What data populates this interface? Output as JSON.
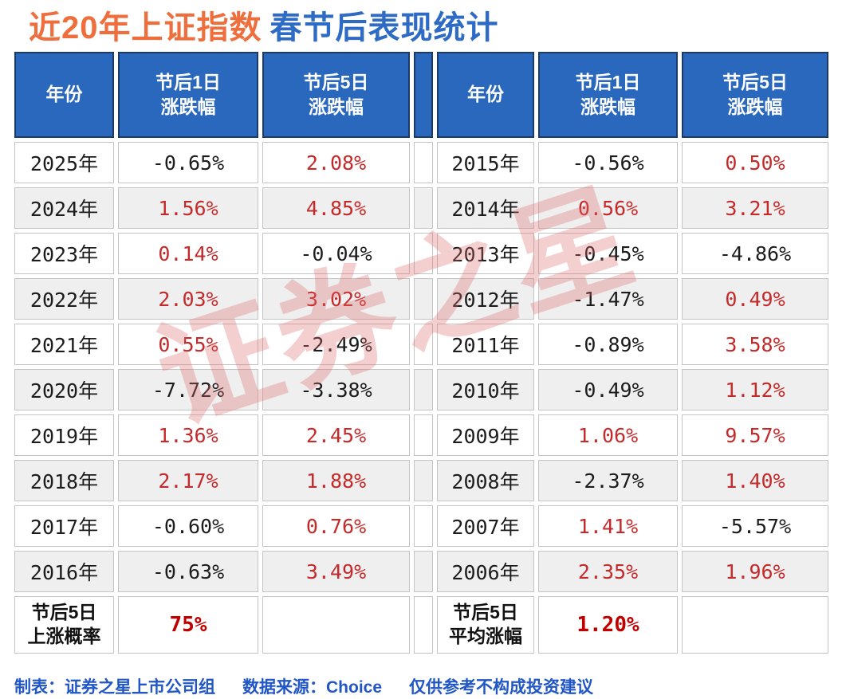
{
  "title": {
    "part1": "近20年上证指数",
    "part2": "春节后表现统计"
  },
  "table": {
    "headers": {
      "year": "年份",
      "day1": "节后1日\n涨跌幅",
      "day5": "节后5日\n涨跌幅"
    },
    "left_rows": [
      {
        "year": "2025年",
        "day1": "-0.65%",
        "day1_sign": "neg",
        "day5": "2.08%",
        "day5_sign": "pos"
      },
      {
        "year": "2024年",
        "day1": "1.56%",
        "day1_sign": "pos",
        "day5": "4.85%",
        "day5_sign": "pos"
      },
      {
        "year": "2023年",
        "day1": "0.14%",
        "day1_sign": "pos",
        "day5": "-0.04%",
        "day5_sign": "neg"
      },
      {
        "year": "2022年",
        "day1": "2.03%",
        "day1_sign": "pos",
        "day5": "3.02%",
        "day5_sign": "pos"
      },
      {
        "year": "2021年",
        "day1": "0.55%",
        "day1_sign": "pos",
        "day5": "-2.49%",
        "day5_sign": "neg"
      },
      {
        "year": "2020年",
        "day1": "-7.72%",
        "day1_sign": "neg",
        "day5": "-3.38%",
        "day5_sign": "neg"
      },
      {
        "year": "2019年",
        "day1": "1.36%",
        "day1_sign": "pos",
        "day5": "2.45%",
        "day5_sign": "pos"
      },
      {
        "year": "2018年",
        "day1": "2.17%",
        "day1_sign": "pos",
        "day5": "1.88%",
        "day5_sign": "pos"
      },
      {
        "year": "2017年",
        "day1": "-0.60%",
        "day1_sign": "neg",
        "day5": "0.76%",
        "day5_sign": "pos"
      },
      {
        "year": "2016年",
        "day1": "-0.63%",
        "day1_sign": "neg",
        "day5": "3.49%",
        "day5_sign": "pos"
      }
    ],
    "right_rows": [
      {
        "year": "2015年",
        "day1": "-0.56%",
        "day1_sign": "neg",
        "day5": "0.50%",
        "day5_sign": "pos"
      },
      {
        "year": "2014年",
        "day1": "0.56%",
        "day1_sign": "pos",
        "day5": "3.21%",
        "day5_sign": "pos"
      },
      {
        "year": "2013年",
        "day1": "-0.45%",
        "day1_sign": "neg",
        "day5": "-4.86%",
        "day5_sign": "neg"
      },
      {
        "year": "2012年",
        "day1": "-1.47%",
        "day1_sign": "neg",
        "day5": "0.49%",
        "day5_sign": "pos"
      },
      {
        "year": "2011年",
        "day1": "-0.89%",
        "day1_sign": "neg",
        "day5": "3.58%",
        "day5_sign": "pos"
      },
      {
        "year": "2010年",
        "day1": "-0.49%",
        "day1_sign": "neg",
        "day5": "1.12%",
        "day5_sign": "pos"
      },
      {
        "year": "2009年",
        "day1": "1.06%",
        "day1_sign": "pos",
        "day5": "9.57%",
        "day5_sign": "pos"
      },
      {
        "year": "2008年",
        "day1": "-2.37%",
        "day1_sign": "neg",
        "day5": "1.40%",
        "day5_sign": "pos"
      },
      {
        "year": "2007年",
        "day1": "1.41%",
        "day1_sign": "pos",
        "day5": "-5.57%",
        "day5_sign": "neg"
      },
      {
        "year": "2006年",
        "day1": "2.35%",
        "day1_sign": "pos",
        "day5": "1.96%",
        "day5_sign": "pos"
      }
    ],
    "left_summary": {
      "label": "节后5日\n上涨概率",
      "value": "75%"
    },
    "right_summary": {
      "label": "节后5日\n平均涨幅",
      "value": "1.20%"
    }
  },
  "watermark": {
    "text": "证券之星"
  },
  "footer": {
    "maker": "制表：证券之星上市公司组",
    "source": "数据来源：Choice",
    "disclaimer": "仅供参考不构成投资建议"
  },
  "colors": {
    "title_orange": "#EE6F3D",
    "title_blue": "#2E6BC4",
    "header_bg": "#2A68BE",
    "header_border": "#1B3A66",
    "stripe_row": "#EFEFEF",
    "positive_value": "#C52A2A",
    "negative_value": "#1C1C1C",
    "summary_value": "#C00000",
    "footer_blue": "#2056C6",
    "watermark_pink": "rgba(222,105,105,0.32)"
  },
  "chart_data": {
    "type": "table",
    "title": "近20年上证指数春节后表现统计",
    "columns": [
      "年份",
      "节后1日涨跌幅(%)",
      "节后5日涨跌幅(%)"
    ],
    "rows": [
      [
        2025,
        -0.65,
        2.08
      ],
      [
        2024,
        1.56,
        4.85
      ],
      [
        2023,
        0.14,
        -0.04
      ],
      [
        2022,
        2.03,
        3.02
      ],
      [
        2021,
        0.55,
        -2.49
      ],
      [
        2020,
        -7.72,
        -3.38
      ],
      [
        2019,
        1.36,
        2.45
      ],
      [
        2018,
        2.17,
        1.88
      ],
      [
        2017,
        -0.6,
        0.76
      ],
      [
        2016,
        -0.63,
        3.49
      ],
      [
        2015,
        -0.56,
        0.5
      ],
      [
        2014,
        0.56,
        3.21
      ],
      [
        2013,
        -0.45,
        -4.86
      ],
      [
        2012,
        -1.47,
        0.49
      ],
      [
        2011,
        -0.89,
        3.58
      ],
      [
        2010,
        -0.49,
        1.12
      ],
      [
        2009,
        1.06,
        9.57
      ],
      [
        2008,
        -2.37,
        1.4
      ],
      [
        2007,
        1.41,
        -5.57
      ],
      [
        2006,
        2.35,
        1.96
      ]
    ],
    "summary": {
      "节后5日上涨概率": "75%",
      "节后5日平均涨幅": "1.20%"
    },
    "legend_note": "正值红色，负值黑色"
  }
}
